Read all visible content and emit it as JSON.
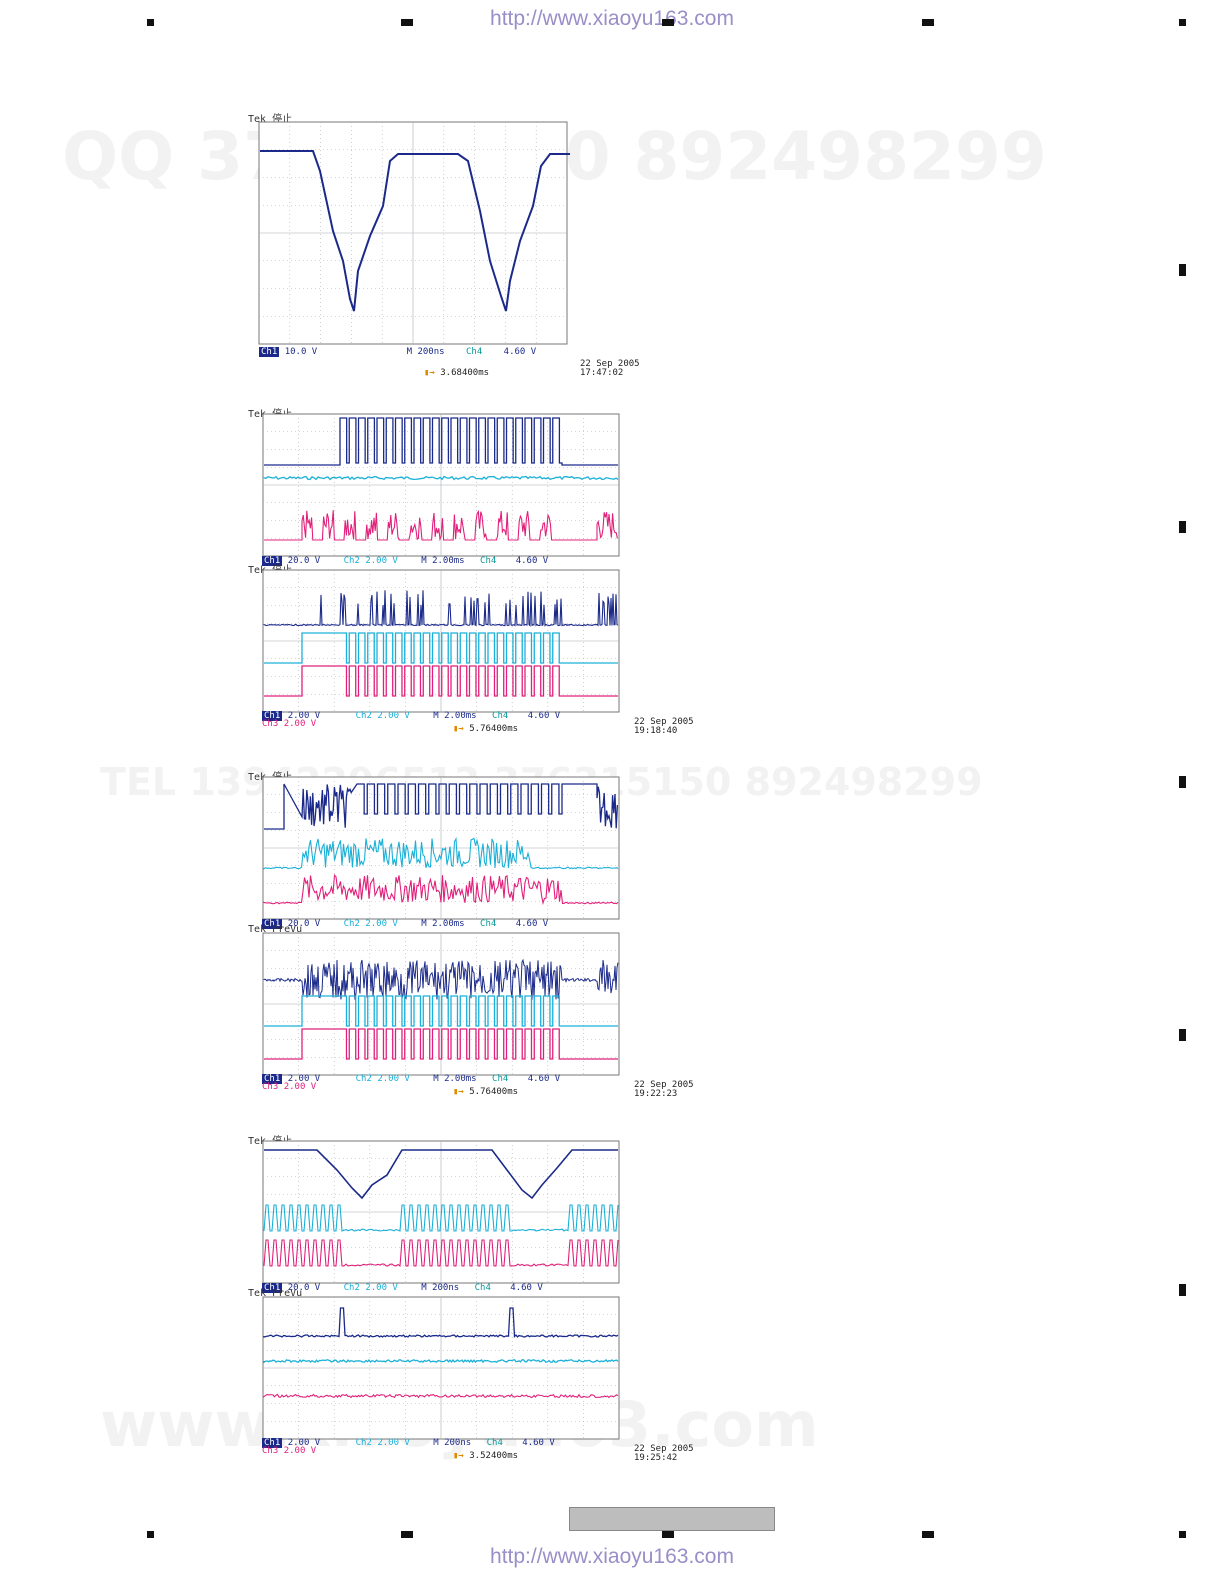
{
  "header_url": "http://www.xiaoyu163.com",
  "footer_url": "http://www.xiaoyu163.com",
  "watermarks": {
    "top": "QQ 376315150   892498299",
    "mid": "TEL 13942296513  376315150  892498299",
    "bottom": "www.xiaoyu163.com"
  },
  "colors": {
    "ch1": "#1b2a8a",
    "ch2": "#1ab0d8",
    "ch3": "#e0207a",
    "grid": "#9aa0a8"
  },
  "scopes": [
    {
      "brand": "Tek 停止",
      "status": {
        "ch1": "Ch1",
        "ch1_scale": "10.0 V",
        "timebase": "M 200ns",
        "trig_src": "Ch4",
        "trig_level": "4.60 V"
      },
      "cursor": "3.68400ms",
      "date": "22 Sep  2005",
      "time": "17:47:02"
    },
    {
      "brand": "Tek 停止",
      "status": {
        "ch1": "Ch1",
        "ch1_scale": "20.0 V",
        "ch2": "Ch2",
        "ch2_scale": "2.00 V",
        "timebase": "M 2.00ms",
        "trig_src": "Ch4",
        "trig_level": "4.60 V"
      }
    },
    {
      "brand": "Tek 停止",
      "status": {
        "ch1": "Ch1",
        "ch1_scale": "2.00 V",
        "ch3": "Ch3",
        "ch3_scale": "2.00 V",
        "ch2": "Ch2",
        "ch2_scale": "2.00 V",
        "timebase": "M 2.00ms",
        "trig_src": "Ch4",
        "trig_level": "4.60 V"
      },
      "cursor": "5.76400ms",
      "date": "22 Sep  2005",
      "time": "19:18:40"
    },
    {
      "brand": "Tek 停止",
      "status": {
        "ch1": "Ch1",
        "ch1_scale": "20.0 V",
        "ch2": "Ch2",
        "ch2_scale": "2.00 V",
        "timebase": "M 2.00ms",
        "trig_src": "Ch4",
        "trig_level": "4.60 V"
      }
    },
    {
      "brand": "Tek PreVu",
      "status": {
        "ch1": "Ch1",
        "ch1_scale": "2.00 V",
        "ch3": "Ch3",
        "ch3_scale": "2.00 V",
        "ch2": "Ch2",
        "ch2_scale": "2.00 V",
        "timebase": "M 2.00ms",
        "trig_src": "Ch4",
        "trig_level": "4.60 V"
      },
      "cursor": "5.76400ms",
      "date": "22 Sep  2005",
      "time": "19:22:23"
    },
    {
      "brand": "Tek 停止",
      "status": {
        "ch1": "Ch1",
        "ch1_scale": "20.0 V",
        "ch2": "Ch2",
        "ch2_scale": "2.00 V",
        "timebase": "M 200ns",
        "trig_src": "Ch4",
        "trig_level": "4.60 V"
      }
    },
    {
      "brand": "Tek PreVu",
      "status": {
        "ch1": "Ch1",
        "ch1_scale": "2.00 V",
        "ch3": "Ch3",
        "ch3_scale": "2.00 V",
        "ch2": "Ch2",
        "ch2_scale": "2.00 V",
        "timebase": "M 200ns",
        "trig_src": "Ch4",
        "trig_level": "4.60 V"
      },
      "cursor": "3.52400ms",
      "date": "22 Sep  2005",
      "time": "19:25:42"
    }
  ]
}
